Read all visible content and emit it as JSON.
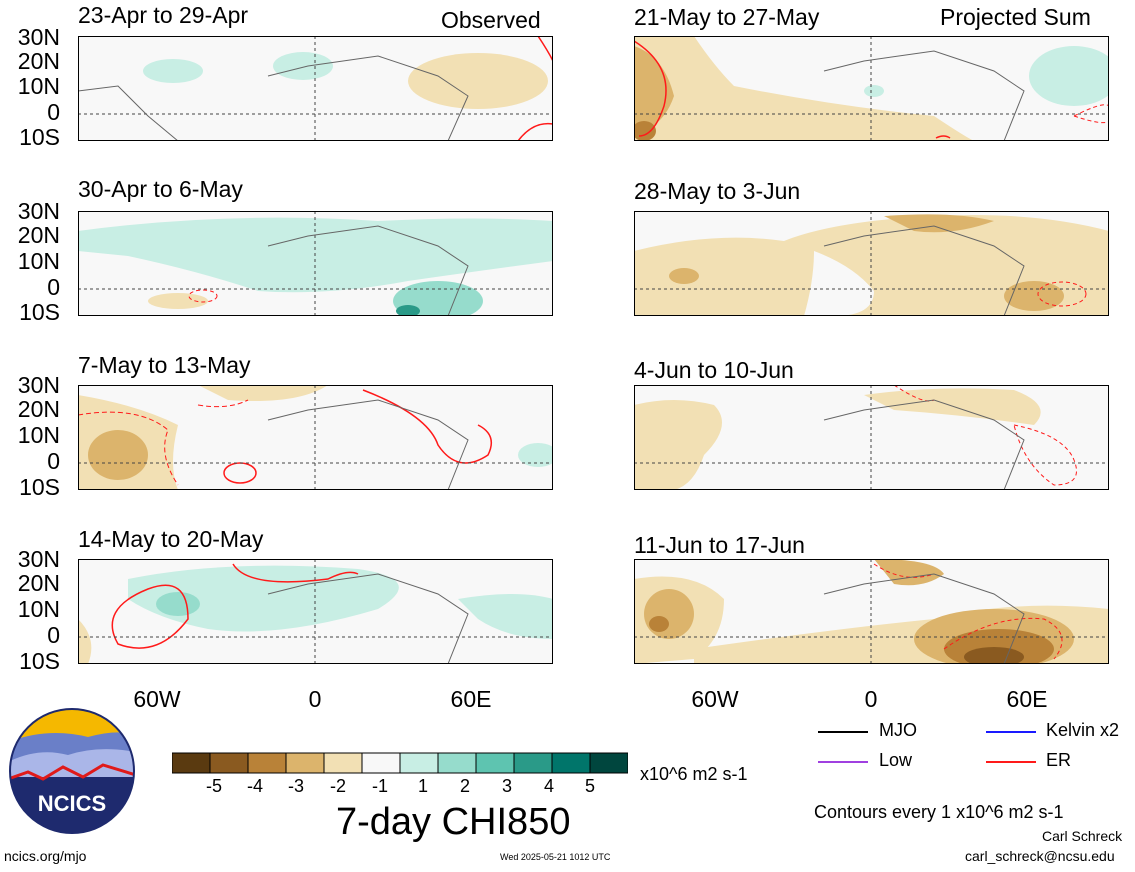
{
  "header": {
    "observed_label": "Observed",
    "projected_label": "Projected Sum"
  },
  "panels_left": [
    {
      "title": "23-Apr to 29-Apr"
    },
    {
      "title": "30-Apr to 6-May"
    },
    {
      "title": "7-May to 13-May"
    },
    {
      "title": "14-May to 20-May"
    }
  ],
  "panels_right": [
    {
      "title": "21-May to 27-May"
    },
    {
      "title": "28-May to 3-Jun"
    },
    {
      "title": "4-Jun to 10-Jun"
    },
    {
      "title": "11-Jun to 17-Jun"
    }
  ],
  "lat_labels": [
    "30N",
    "20N",
    "10N",
    "0",
    "10S"
  ],
  "lon_labels": [
    "60W",
    "0",
    "60E"
  ],
  "legend": {
    "items": [
      {
        "label": "MJO",
        "color": "#000000"
      },
      {
        "label": "Kelvin x2",
        "color": "#1a1aff"
      },
      {
        "label": "Low",
        "color": "#a040e0"
      },
      {
        "label": "ER",
        "color": "#ff1a1a"
      }
    ],
    "contour_note": "Contours every 1 x10^6 m2 s-1"
  },
  "colorbar": {
    "colors": [
      "#5a3a10",
      "#8a5a20",
      "#b98238",
      "#dcb46c",
      "#f2e0b4",
      "#f8f8f8",
      "#c8eee4",
      "#96dccc",
      "#5ec4b0",
      "#2a9a88",
      "#00756a",
      "#00463e"
    ],
    "ticks": [
      "-5",
      "-4",
      "-3",
      "-2",
      "-1",
      "1",
      "2",
      "3",
      "4",
      "5"
    ],
    "units": "x10^6 m2 s-1",
    "title": "7-day CHI850"
  },
  "footer": {
    "logo_text": "NCICS",
    "url": "ncics.org/mjo",
    "timestamp": "Wed 2025-05-21 1012 UTC",
    "author": "Carl Schreck",
    "email": "carl_schreck@ncsu.edu"
  }
}
